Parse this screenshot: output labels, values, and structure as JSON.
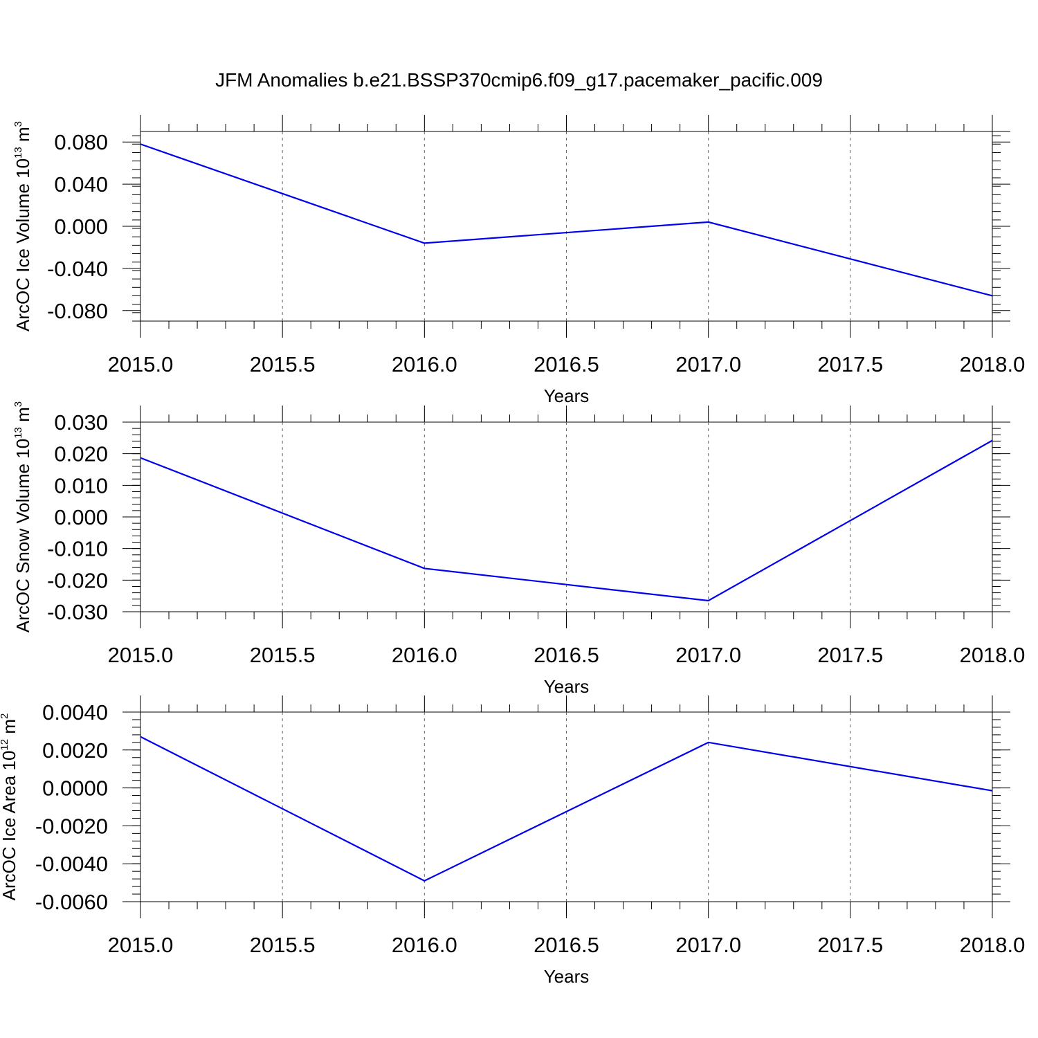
{
  "title": "JFM Anomalies b.e21.BSSP370cmip6.f09_g17.pacemaker_pacific.009",
  "colors": {
    "line": "#0000ee",
    "frame": "#000000",
    "grid": "#666666"
  },
  "chart_data": [
    {
      "type": "line",
      "xlabel": "Years",
      "ylabel": {
        "text": "ArcOC Ice Volume 10",
        "exponent": "13",
        "unit": "m",
        "unit_exponent": "3"
      },
      "xlim": [
        2015.0,
        2018.0
      ],
      "ylim": [
        -0.09,
        0.09
      ],
      "x_ticks": [
        "2015.0",
        "2015.5",
        "2016.0",
        "2016.5",
        "2017.0",
        "2017.5",
        "2018.0"
      ],
      "y_ticks": [
        "0.080",
        "0.040",
        "0.000",
        "-0.040",
        "-0.080"
      ],
      "y_tick_values": [
        0.08,
        0.04,
        0.0,
        -0.04,
        -0.08
      ],
      "grid": "dashed vertical at x ticks",
      "series": [
        {
          "x": [
            2015,
            2016,
            2017,
            2018
          ],
          "values": [
            0.078,
            -0.016,
            0.004,
            -0.066
          ]
        }
      ]
    },
    {
      "type": "line",
      "xlabel": "Years",
      "ylabel": {
        "text": "ArcOC Snow Volume 10",
        "exponent": "13",
        "unit": "m",
        "unit_exponent": "3"
      },
      "xlim": [
        2015.0,
        2018.0
      ],
      "ylim": [
        -0.03,
        0.03
      ],
      "x_ticks": [
        "2015.0",
        "2015.5",
        "2016.0",
        "2016.5",
        "2017.0",
        "2017.5",
        "2018.0"
      ],
      "y_ticks": [
        "0.030",
        "0.020",
        "0.010",
        "0.000",
        "-0.010",
        "-0.020",
        "-0.030"
      ],
      "y_tick_values": [
        0.03,
        0.02,
        0.01,
        0.0,
        -0.01,
        -0.02,
        -0.03
      ],
      "grid": "dashed vertical at x ticks",
      "series": [
        {
          "x": [
            2015,
            2016,
            2017,
            2018
          ],
          "values": [
            0.0187,
            -0.0163,
            -0.0265,
            0.0242
          ]
        }
      ]
    },
    {
      "type": "line",
      "xlabel": "Years",
      "ylabel": {
        "text": "ArcOC Ice Area 10",
        "exponent": "12",
        "unit": "m",
        "unit_exponent": "2"
      },
      "xlim": [
        2015.0,
        2018.0
      ],
      "ylim": [
        -0.006,
        0.004
      ],
      "x_ticks": [
        "2015.0",
        "2015.5",
        "2016.0",
        "2016.5",
        "2017.0",
        "2017.5",
        "2018.0"
      ],
      "y_ticks": [
        "0.0040",
        "0.0020",
        "0.0000",
        "-0.0020",
        "-0.0040",
        "-0.0060"
      ],
      "y_tick_values": [
        0.004,
        0.002,
        0.0,
        -0.002,
        -0.004,
        -0.006
      ],
      "grid": "dashed vertical at x ticks",
      "series": [
        {
          "x": [
            2015,
            2016,
            2017,
            2018
          ],
          "values": [
            0.0027,
            -0.0049,
            0.0024,
            -0.00015
          ]
        }
      ]
    }
  ]
}
